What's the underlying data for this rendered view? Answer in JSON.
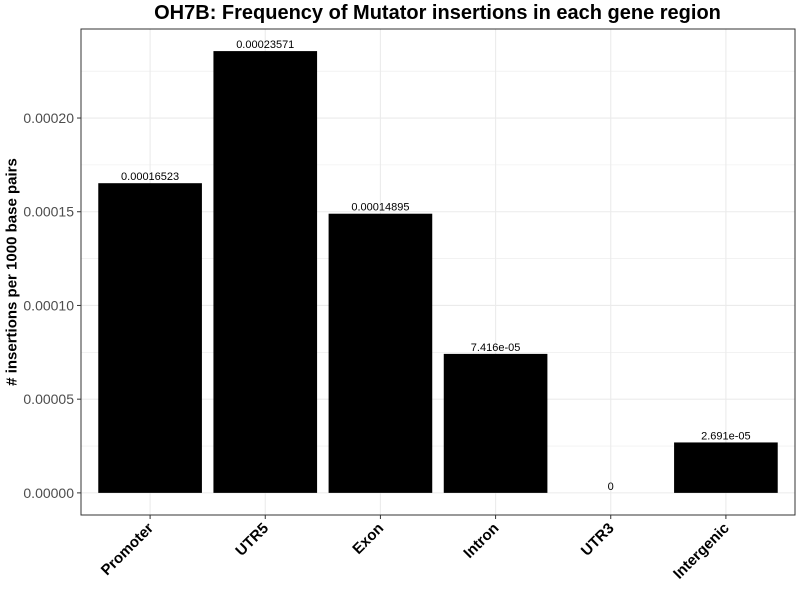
{
  "chart_data": {
    "type": "bar",
    "title": "OH7B: Frequency of Mutator insertions in each gene region",
    "xlabel": "",
    "ylabel": "# insertions per 1000 base pairs",
    "categories": [
      "Promoter",
      "UTR5",
      "Exon",
      "Intron",
      "UTR3",
      "Intergenic"
    ],
    "values": [
      0.00016523,
      0.00023571,
      0.00014895,
      7.416e-05,
      0,
      2.691e-05
    ],
    "value_labels": [
      "0.00016523",
      "0.00023571",
      "0.00014895",
      "7.416e-05",
      "0",
      "2.691e-05"
    ],
    "yticks": [
      0,
      5e-05,
      0.0001,
      0.00015,
      0.0002
    ],
    "ytick_labels": [
      "0.00000",
      "0.00005",
      "0.00010",
      "0.00015",
      "0.00020"
    ],
    "ylim": [
      -1.18e-05,
      0.0002475
    ],
    "grid": true,
    "bar_color": "#000000",
    "grid_color": "#ebebeb",
    "panel_border_color": "#333333"
  }
}
